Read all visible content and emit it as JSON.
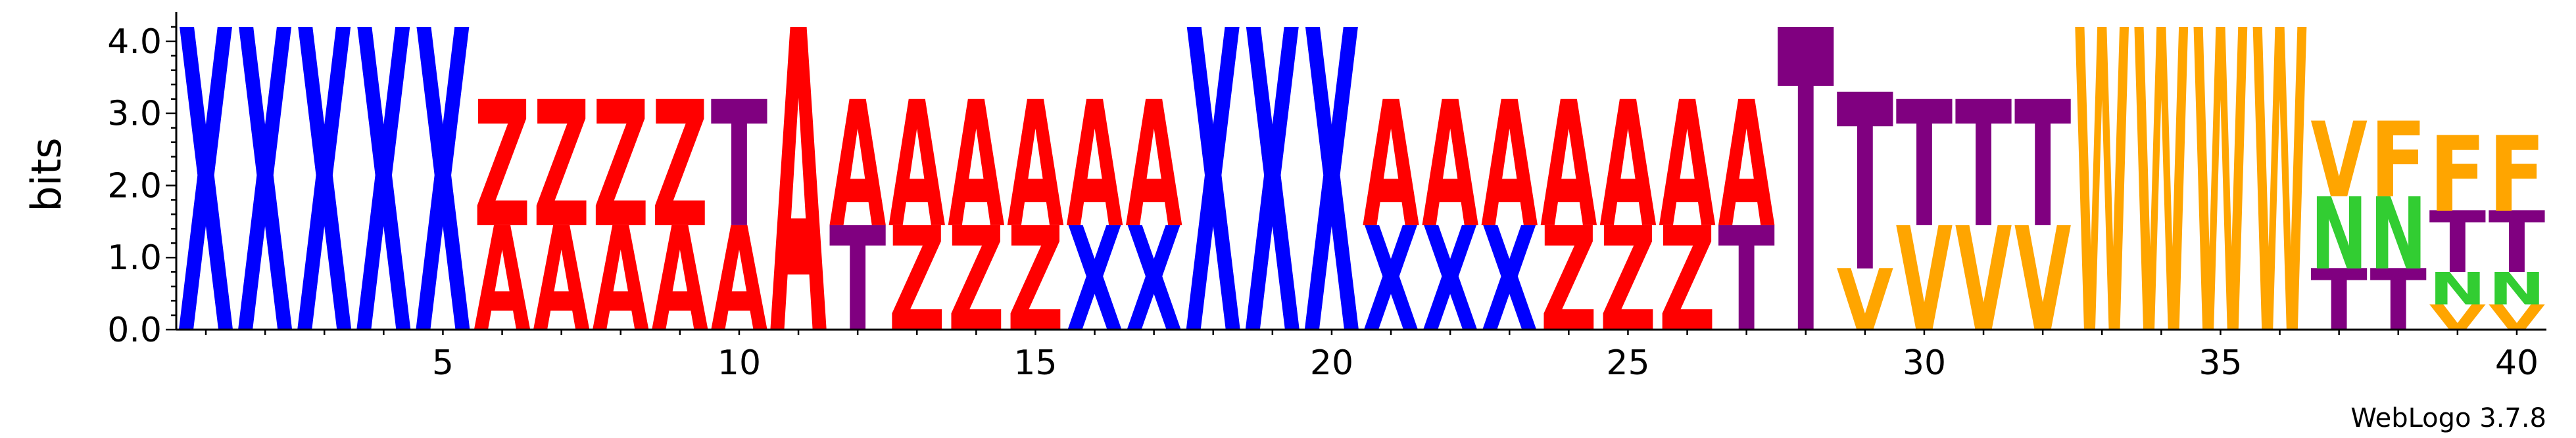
{
  "chart_data": {
    "type": "sequence-logo",
    "title": "",
    "ylabel": "bits",
    "xlabel": "",
    "ylim": [
      0,
      4.3
    ],
    "y_ticks": [
      {
        "value": 0,
        "label": "0.0"
      },
      {
        "value": 1,
        "label": "1.0"
      },
      {
        "value": 2,
        "label": "2.0"
      },
      {
        "value": 3,
        "label": "3.0"
      },
      {
        "value": 4,
        "label": "4.0"
      }
    ],
    "x_ticks": [
      {
        "value": 5,
        "label": "5"
      },
      {
        "value": 10,
        "label": "10"
      },
      {
        "value": 15,
        "label": "15"
      },
      {
        "value": 20,
        "label": "20"
      },
      {
        "value": 25,
        "label": "25"
      },
      {
        "value": 30,
        "label": "30"
      },
      {
        "value": 35,
        "label": "35"
      },
      {
        "value": 40,
        "label": "40"
      }
    ],
    "credit": "WebLogo 3.7.8",
    "colors": {
      "X": "#0000ff",
      "Z": "#ff0000",
      "A": "#ff0000",
      "T": "#800080",
      "V": "#ffa500",
      "W": "#ffa500",
      "F": "#ffa500",
      "N": "#32cd32"
    },
    "positions": [
      {
        "pos": 1,
        "letters": [
          {
            "char": "X",
            "bits": 4.2
          }
        ]
      },
      {
        "pos": 2,
        "letters": [
          {
            "char": "X",
            "bits": 4.2
          }
        ]
      },
      {
        "pos": 3,
        "letters": [
          {
            "char": "X",
            "bits": 4.2
          }
        ]
      },
      {
        "pos": 4,
        "letters": [
          {
            "char": "X",
            "bits": 4.2
          }
        ]
      },
      {
        "pos": 5,
        "letters": [
          {
            "char": "X",
            "bits": 4.2
          }
        ]
      },
      {
        "pos": 6,
        "letters": [
          {
            "char": "A",
            "bits": 1.45
          },
          {
            "char": "Z",
            "bits": 1.75
          }
        ]
      },
      {
        "pos": 7,
        "letters": [
          {
            "char": "A",
            "bits": 1.45
          },
          {
            "char": "Z",
            "bits": 1.75
          }
        ]
      },
      {
        "pos": 8,
        "letters": [
          {
            "char": "A",
            "bits": 1.45
          },
          {
            "char": "Z",
            "bits": 1.75
          }
        ]
      },
      {
        "pos": 9,
        "letters": [
          {
            "char": "A",
            "bits": 1.45
          },
          {
            "char": "Z",
            "bits": 1.75
          }
        ]
      },
      {
        "pos": 10,
        "letters": [
          {
            "char": "A",
            "bits": 1.45
          },
          {
            "char": "T",
            "bits": 1.75
          }
        ]
      },
      {
        "pos": 11,
        "letters": [
          {
            "char": "A",
            "bits": 4.2
          }
        ]
      },
      {
        "pos": 12,
        "letters": [
          {
            "char": "T",
            "bits": 1.45
          },
          {
            "char": "A",
            "bits": 1.75
          }
        ]
      },
      {
        "pos": 13,
        "letters": [
          {
            "char": "Z",
            "bits": 1.45
          },
          {
            "char": "A",
            "bits": 1.75
          }
        ]
      },
      {
        "pos": 14,
        "letters": [
          {
            "char": "Z",
            "bits": 1.45
          },
          {
            "char": "A",
            "bits": 1.75
          }
        ]
      },
      {
        "pos": 15,
        "letters": [
          {
            "char": "Z",
            "bits": 1.45
          },
          {
            "char": "A",
            "bits": 1.75
          }
        ]
      },
      {
        "pos": 16,
        "letters": [
          {
            "char": "X",
            "bits": 1.45
          },
          {
            "char": "A",
            "bits": 1.75
          }
        ]
      },
      {
        "pos": 17,
        "letters": [
          {
            "char": "X",
            "bits": 1.45
          },
          {
            "char": "A",
            "bits": 1.75
          }
        ]
      },
      {
        "pos": 18,
        "letters": [
          {
            "char": "X",
            "bits": 4.2
          }
        ]
      },
      {
        "pos": 19,
        "letters": [
          {
            "char": "X",
            "bits": 4.2
          }
        ]
      },
      {
        "pos": 20,
        "letters": [
          {
            "char": "X",
            "bits": 4.2
          }
        ]
      },
      {
        "pos": 21,
        "letters": [
          {
            "char": "X",
            "bits": 1.45
          },
          {
            "char": "A",
            "bits": 1.75
          }
        ]
      },
      {
        "pos": 22,
        "letters": [
          {
            "char": "X",
            "bits": 1.45
          },
          {
            "char": "A",
            "bits": 1.75
          }
        ]
      },
      {
        "pos": 23,
        "letters": [
          {
            "char": "X",
            "bits": 1.45
          },
          {
            "char": "A",
            "bits": 1.75
          }
        ]
      },
      {
        "pos": 24,
        "letters": [
          {
            "char": "Z",
            "bits": 1.45
          },
          {
            "char": "A",
            "bits": 1.75
          }
        ]
      },
      {
        "pos": 25,
        "letters": [
          {
            "char": "Z",
            "bits": 1.45
          },
          {
            "char": "A",
            "bits": 1.75
          }
        ]
      },
      {
        "pos": 26,
        "letters": [
          {
            "char": "Z",
            "bits": 1.45
          },
          {
            "char": "A",
            "bits": 1.75
          }
        ]
      },
      {
        "pos": 27,
        "letters": [
          {
            "char": "T",
            "bits": 1.45
          },
          {
            "char": "A",
            "bits": 1.75
          }
        ]
      },
      {
        "pos": 28,
        "letters": [
          {
            "char": "T",
            "bits": 4.2
          }
        ]
      },
      {
        "pos": 29,
        "letters": [
          {
            "char": "V",
            "bits": 0.85
          },
          {
            "char": "T",
            "bits": 2.45
          }
        ]
      },
      {
        "pos": 30,
        "letters": [
          {
            "char": "V",
            "bits": 1.45
          },
          {
            "char": "T",
            "bits": 1.75
          }
        ]
      },
      {
        "pos": 31,
        "letters": [
          {
            "char": "V",
            "bits": 1.45
          },
          {
            "char": "T",
            "bits": 1.75
          }
        ]
      },
      {
        "pos": 32,
        "letters": [
          {
            "char": "V",
            "bits": 1.45
          },
          {
            "char": "T",
            "bits": 1.75
          }
        ]
      },
      {
        "pos": 33,
        "letters": [
          {
            "char": "W",
            "bits": 4.2
          }
        ]
      },
      {
        "pos": 34,
        "letters": [
          {
            "char": "W",
            "bits": 4.2
          }
        ]
      },
      {
        "pos": 35,
        "letters": [
          {
            "char": "W",
            "bits": 4.2
          }
        ]
      },
      {
        "pos": 36,
        "letters": [
          {
            "char": "W",
            "bits": 4.2
          }
        ]
      },
      {
        "pos": 37,
        "letters": [
          {
            "char": "T",
            "bits": 0.85
          },
          {
            "char": "N",
            "bits": 1.0
          },
          {
            "char": "V",
            "bits": 1.05
          }
        ]
      },
      {
        "pos": 38,
        "letters": [
          {
            "char": "T",
            "bits": 0.85
          },
          {
            "char": "N",
            "bits": 1.0
          },
          {
            "char": "F",
            "bits": 1.05
          }
        ]
      },
      {
        "pos": 39,
        "letters": [
          {
            "char": "V",
            "bits": 0.35
          },
          {
            "char": "N",
            "bits": 0.45
          },
          {
            "char": "T",
            "bits": 0.85
          },
          {
            "char": "F",
            "bits": 1.05
          }
        ]
      },
      {
        "pos": 40,
        "letters": [
          {
            "char": "V",
            "bits": 0.35
          },
          {
            "char": "N",
            "bits": 0.45
          },
          {
            "char": "T",
            "bits": 0.85
          },
          {
            "char": "F",
            "bits": 1.05
          }
        ]
      }
    ]
  }
}
